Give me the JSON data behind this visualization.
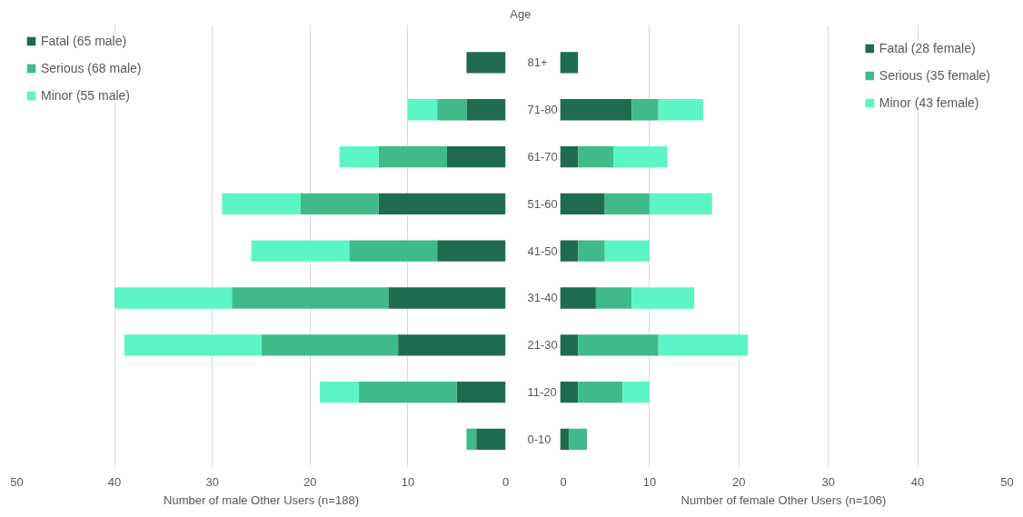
{
  "chart_data": [
    {
      "type": "bar",
      "orientation": "horizontal",
      "stacked": true,
      "ylabel": "Age",
      "xlabel": "Number of male Other Users (n=188)",
      "categories": [
        "81+",
        "71-80",
        "61-70",
        "51-60",
        "41-50",
        "31-40",
        "21-30",
        "11-20",
        "0-10"
      ],
      "series": [
        {
          "name": "Fatal (65 male)",
          "color": "#1f6b4f",
          "values": [
            4,
            4,
            6,
            13,
            7,
            12,
            11,
            5,
            3
          ]
        },
        {
          "name": "Serious (68 male)",
          "color": "#3fba8b",
          "values": [
            0,
            3,
            7,
            8,
            9,
            16,
            14,
            10,
            1
          ]
        },
        {
          "name": "Minor (55 male)",
          "color": "#5cf5c6",
          "values": [
            0,
            3,
            4,
            8,
            10,
            12,
            14,
            4,
            0
          ]
        }
      ],
      "xlim": [
        50,
        0
      ],
      "xticks": [
        50,
        40,
        30,
        20,
        10,
        0
      ],
      "grid": "x",
      "legend": "top left"
    },
    {
      "type": "bar",
      "orientation": "horizontal",
      "stacked": true,
      "xlabel": "Number of female Other Users (n=106)",
      "categories": [
        null,
        null,
        null,
        null,
        null,
        null,
        null,
        null,
        null
      ],
      "series": [
        {
          "name": "Fatal (28 female)",
          "color": "#1f6b4f",
          "values": [
            2,
            8,
            2,
            5,
            2,
            4,
            2,
            2,
            1
          ]
        },
        {
          "name": "Serious (35 female)",
          "color": "#3fba8b",
          "values": [
            0,
            3,
            4,
            5,
            3,
            4,
            9,
            5,
            2
          ]
        },
        {
          "name": "Minor (43 female)",
          "color": "#5cf5c6",
          "values": [
            0,
            5,
            6,
            7,
            5,
            7,
            10,
            3,
            0
          ]
        }
      ],
      "xlim": [
        0,
        50
      ],
      "xticks": [
        0,
        10,
        20,
        30,
        40,
        50
      ],
      "grid": "x",
      "legend": "top right",
      "tick_labels": "x"
    }
  ]
}
